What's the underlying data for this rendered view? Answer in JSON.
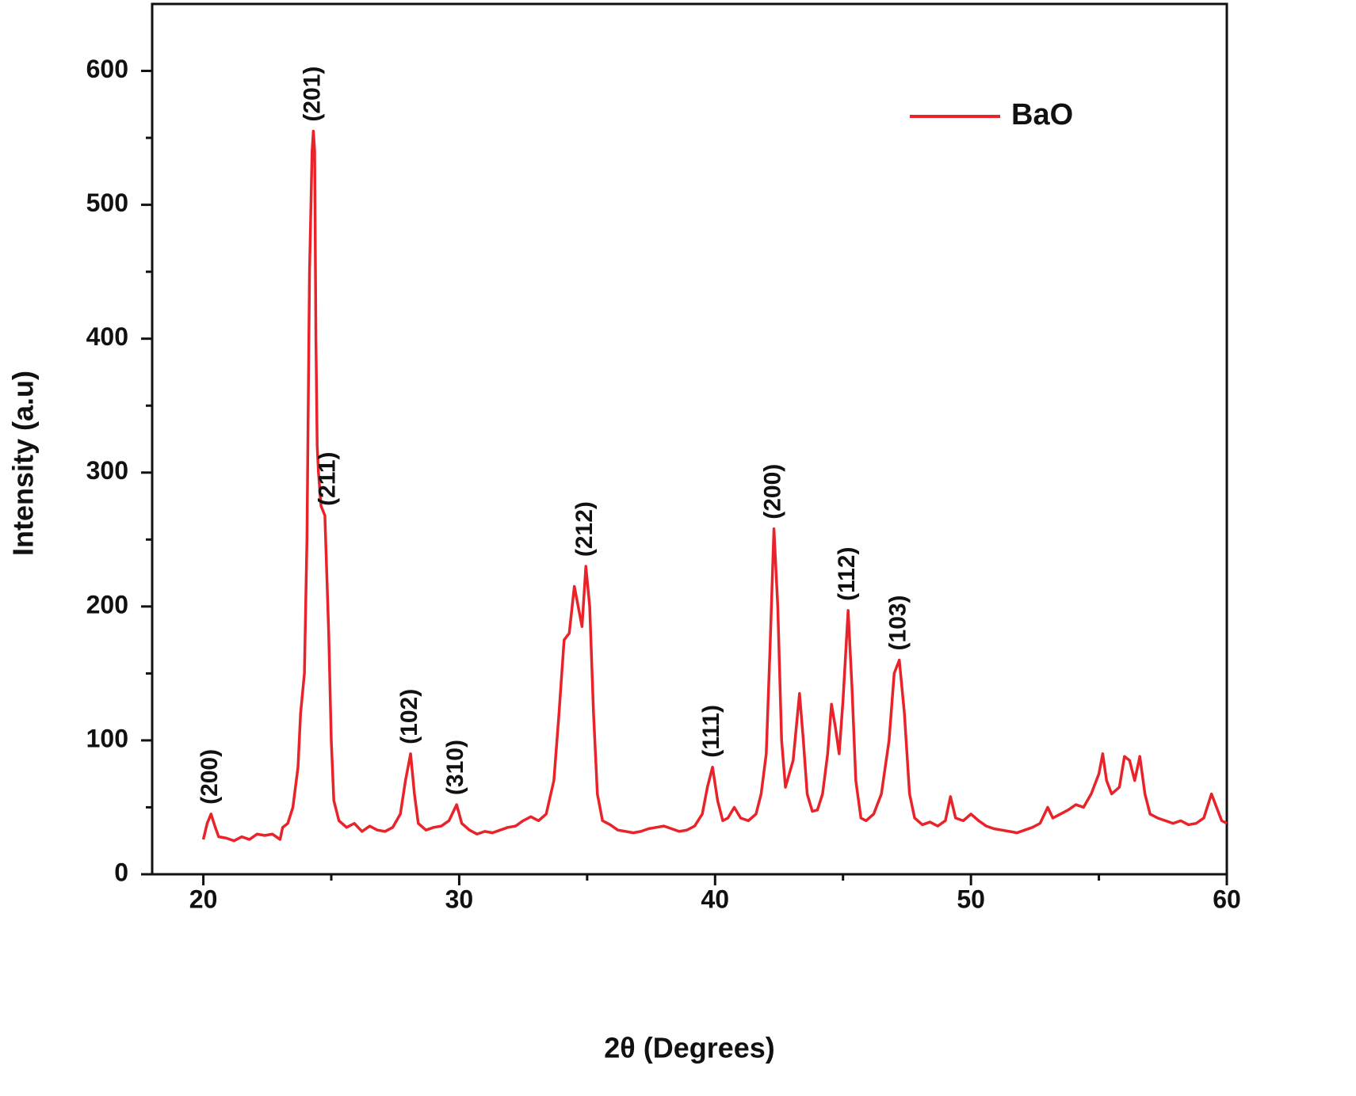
{
  "chart_data": {
    "type": "line",
    "xlabel": "2θ (Degrees)",
    "ylabel": "Intensity (a.u)",
    "xlim": [
      18,
      60
    ],
    "ylim": [
      0,
      650
    ],
    "xticks": [
      20,
      30,
      40,
      50,
      60
    ],
    "yticks": [
      0,
      100,
      200,
      300,
      400,
      500,
      600
    ],
    "xticks_minor": [
      25,
      35,
      45,
      55
    ],
    "yticks_minor": [
      50,
      150,
      250,
      350,
      450,
      550
    ],
    "legend": "upper right",
    "x": [
      20.0,
      20.15,
      20.3,
      20.45,
      20.6,
      20.9,
      21.2,
      21.5,
      21.8,
      22.1,
      22.4,
      22.7,
      23.0,
      23.1,
      23.3,
      23.5,
      23.7,
      23.8,
      23.95,
      24.05,
      24.15,
      24.25,
      24.3,
      24.35,
      24.4,
      24.45,
      24.5,
      24.6,
      24.75,
      24.9,
      25.0,
      25.1,
      25.3,
      25.6,
      25.9,
      26.2,
      26.5,
      26.8,
      27.1,
      27.4,
      27.7,
      27.9,
      28.1,
      28.25,
      28.4,
      28.7,
      29.0,
      29.3,
      29.6,
      29.9,
      30.1,
      30.4,
      30.7,
      31.0,
      31.3,
      31.6,
      31.9,
      32.2,
      32.5,
      32.8,
      33.1,
      33.4,
      33.7,
      33.9,
      34.1,
      34.3,
      34.5,
      34.65,
      34.8,
      34.95,
      35.1,
      35.25,
      35.4,
      35.6,
      35.9,
      36.2,
      36.5,
      36.8,
      37.1,
      37.4,
      37.7,
      38.0,
      38.3,
      38.6,
      38.9,
      39.2,
      39.5,
      39.7,
      39.9,
      40.1,
      40.3,
      40.5,
      40.75,
      41.0,
      41.3,
      41.6,
      41.8,
      42.0,
      42.15,
      42.3,
      42.45,
      42.6,
      42.75,
      42.9,
      43.05,
      43.3,
      43.45,
      43.6,
      43.8,
      44.0,
      44.2,
      44.4,
      44.55,
      44.7,
      44.85,
      45.0,
      45.2,
      45.35,
      45.5,
      45.7,
      45.9,
      46.2,
      46.5,
      46.8,
      47.0,
      47.2,
      47.4,
      47.6,
      47.8,
      48.1,
      48.4,
      48.7,
      49.0,
      49.2,
      49.4,
      49.7,
      50.0,
      50.3,
      50.6,
      50.9,
      51.2,
      51.5,
      51.8,
      52.1,
      52.4,
      52.7,
      53.0,
      53.2,
      53.5,
      53.8,
      54.1,
      54.4,
      54.7,
      55.0,
      55.15,
      55.3,
      55.5,
      55.8,
      56.0,
      56.2,
      56.4,
      56.6,
      56.8,
      57.0,
      57.3,
      57.6,
      57.9,
      58.2,
      58.5,
      58.8,
      59.1,
      59.4,
      59.6,
      59.8,
      60.0
    ],
    "series": [
      {
        "name": "BaO",
        "color": "#e8242a",
        "values": [
          26,
          38,
          45,
          36,
          28,
          27,
          25,
          28,
          26,
          30,
          29,
          30,
          26,
          35,
          38,
          50,
          80,
          120,
          150,
          250,
          450,
          540,
          555,
          540,
          400,
          320,
          300,
          275,
          268,
          180,
          100,
          55,
          40,
          35,
          38,
          32,
          36,
          33,
          32,
          35,
          45,
          70,
          90,
          60,
          38,
          33,
          35,
          36,
          40,
          52,
          38,
          33,
          30,
          32,
          31,
          33,
          35,
          36,
          40,
          43,
          40,
          45,
          70,
          120,
          175,
          180,
          215,
          200,
          185,
          230,
          200,
          120,
          60,
          40,
          37,
          33,
          32,
          31,
          32,
          34,
          35,
          36,
          34,
          32,
          33,
          36,
          45,
          65,
          80,
          55,
          40,
          42,
          50,
          42,
          40,
          45,
          60,
          90,
          170,
          258,
          200,
          100,
          65,
          75,
          85,
          135,
          100,
          60,
          47,
          48,
          60,
          90,
          127,
          110,
          90,
          130,
          197,
          140,
          70,
          42,
          40,
          45,
          60,
          100,
          150,
          160,
          120,
          60,
          42,
          37,
          39,
          36,
          40,
          58,
          42,
          40,
          45,
          40,
          36,
          34,
          33,
          32,
          31,
          33,
          35,
          38,
          50,
          42,
          45,
          48,
          52,
          50,
          60,
          75,
          90,
          70,
          60,
          65,
          88,
          85,
          70,
          88,
          60,
          45,
          42,
          40,
          38,
          40,
          37,
          38,
          42,
          60,
          50,
          40,
          38
        ]
      }
    ],
    "annotations": [
      {
        "text": "(200)",
        "x": 20.3
      },
      {
        "text": "(201)",
        "x": 24.3
      },
      {
        "text": "(211)",
        "x": 24.9
      },
      {
        "text": "(102)",
        "x": 28.1
      },
      {
        "text": "(310)",
        "x": 29.9
      },
      {
        "text": "(212)",
        "x": 34.95
      },
      {
        "text": "(111)",
        "x": 39.9
      },
      {
        "text": "(200)",
        "x": 42.3
      },
      {
        "text": "(112)",
        "x": 45.2
      },
      {
        "text": "(103)",
        "x": 47.2
      }
    ]
  }
}
